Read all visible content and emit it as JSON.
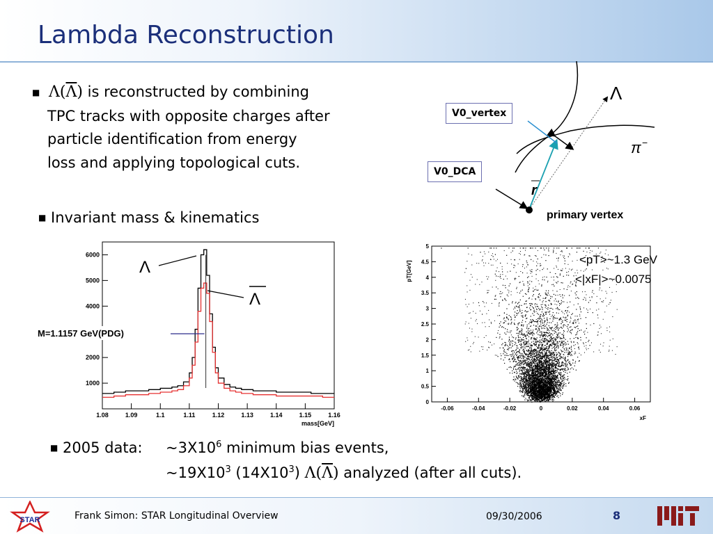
{
  "slide": {
    "title": "Lambda Reconstruction",
    "bullet1": {
      "symbol": "Λ(Λ)",
      "line1": "is reconstructed by combining",
      "line2": "TPC tracks with opposite charges after",
      "line3": "particle identification from energy",
      "line4": "loss and applying topological cuts."
    },
    "bullet2": "Invariant mass & kinematics",
    "bullet3": {
      "label": "2005 data:",
      "line1_prefix": "~3X10",
      "line1_sup": "6",
      "line1_suffix": "minimum bias events,",
      "line2_a": "~19X10",
      "line2_sup1": "3",
      "line2_b": "(14X10",
      "line2_sup2": "3",
      "line2_c": ")",
      "line2_symbol": "Λ(Λ)",
      "line2_suffix": "analyzed (after all cuts)."
    }
  },
  "diagram": {
    "lambda_label": "Λ",
    "pion_label": "π",
    "pion_charge": "−",
    "r_label": "r",
    "v0_vertex_label": "V0_vertex",
    "v0_dca_label": "V0_DCA",
    "primary_vertex_label": "primary vertex"
  },
  "chart_data": [
    {
      "type": "line",
      "xlabel": "mass[GeV]",
      "ylabel": "",
      "xlim": [
        1.08,
        1.16
      ],
      "ylim": [
        0,
        6500
      ],
      "xticks": [
        "1.08",
        "1.09",
        "1.1",
        "1.11",
        "1.12",
        "1.13",
        "1.14",
        "1.15",
        "1.16"
      ],
      "yticks": [
        "1000",
        "2000",
        "3000",
        "4000",
        "5000",
        "6000"
      ],
      "series": [
        {
          "name": "Λ",
          "color": "#000000",
          "x": [
            1.08,
            1.084,
            1.088,
            1.092,
            1.096,
            1.1,
            1.104,
            1.106,
            1.108,
            1.11,
            1.111,
            1.112,
            1.113,
            1.114,
            1.115,
            1.116,
            1.117,
            1.118,
            1.119,
            1.12,
            1.122,
            1.124,
            1.126,
            1.128,
            1.132,
            1.136,
            1.14,
            1.144,
            1.148,
            1.152,
            1.156,
            1.16
          ],
          "y": [
            600,
            650,
            700,
            700,
            750,
            800,
            850,
            900,
            1050,
            1400,
            2000,
            3100,
            4700,
            6000,
            6200,
            5200,
            3700,
            2400,
            1600,
            1200,
            950,
            850,
            800,
            750,
            700,
            700,
            650,
            650,
            650,
            600,
            600,
            600
          ]
        },
        {
          "name": "Λ̄",
          "color": "#e53030",
          "x": [
            1.08,
            1.084,
            1.088,
            1.092,
            1.096,
            1.1,
            1.104,
            1.106,
            1.108,
            1.11,
            1.111,
            1.112,
            1.113,
            1.114,
            1.115,
            1.116,
            1.117,
            1.118,
            1.119,
            1.12,
            1.122,
            1.124,
            1.126,
            1.128,
            1.132,
            1.136,
            1.14,
            1.144,
            1.148,
            1.152,
            1.156,
            1.16
          ],
          "y": [
            450,
            500,
            550,
            550,
            600,
            650,
            700,
            750,
            900,
            1200,
            1700,
            2600,
            3800,
            4700,
            4900,
            4500,
            3400,
            2200,
            1400,
            1000,
            800,
            700,
            650,
            600,
            550,
            550,
            500,
            500,
            500,
            500,
            450,
            450
          ]
        }
      ],
      "annotations": [
        {
          "text": "M=1.1157 GeV(PDG)",
          "x": 1.1157
        }
      ]
    },
    {
      "type": "scatter",
      "xlabel": "xF",
      "ylabel": "pT[GeV]",
      "xlim": [
        -0.07,
        0.07
      ],
      "ylim": [
        0,
        5
      ],
      "xticks": [
        "-0.06",
        "-0.04",
        "-0.02",
        "0",
        "0.02",
        "0.04",
        "0.06"
      ],
      "yticks": [
        "0",
        "0.5",
        "1",
        "1.5",
        "2",
        "2.5",
        "3",
        "3.5",
        "4",
        "4.5",
        "5"
      ],
      "mean_pt": "<pT>~1.3 GeV",
      "mean_xf": "<|xF|>~0.0075"
    }
  ],
  "footer": {
    "author": "Frank Simon: STAR Longitudinal Overview",
    "date": "09/30/2006",
    "page": "8",
    "star_logo_text": "STAR"
  }
}
